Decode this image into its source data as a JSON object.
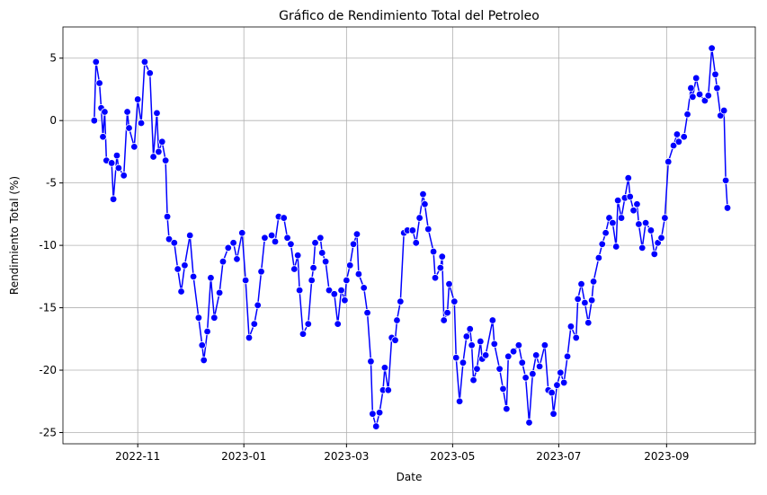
{
  "chart_data": {
    "type": "line",
    "title": "Gráfico de Rendimiento Total del Petroleo",
    "xlabel": "Date",
    "ylabel": "Rendimiento Total (%)",
    "grid": true,
    "xlim": [
      "2022-09-19",
      "2023-10-22"
    ],
    "xticks": [
      {
        "value": "2022-11-01",
        "label": "2022-11"
      },
      {
        "value": "2023-01-01",
        "label": "2023-01"
      },
      {
        "value": "2023-03-01",
        "label": "2023-03"
      },
      {
        "value": "2023-05-01",
        "label": "2023-05"
      },
      {
        "value": "2023-07-01",
        "label": "2023-07"
      },
      {
        "value": "2023-09-01",
        "label": "2023-09"
      }
    ],
    "ylim": [
      -25.9,
      7.5
    ],
    "yticks": [
      -25,
      -20,
      -15,
      -10,
      -5,
      0,
      5
    ],
    "x": [
      "2022-10-07",
      "2022-10-08",
      "2022-10-10",
      "2022-10-11",
      "2022-10-12",
      "2022-10-13",
      "2022-10-14",
      "2022-10-17",
      "2022-10-18",
      "2022-10-20",
      "2022-10-21",
      "2022-10-24",
      "2022-10-26",
      "2022-10-27",
      "2022-10-30",
      "2022-11-01",
      "2022-11-03",
      "2022-11-05",
      "2022-11-08",
      "2022-11-10",
      "2022-11-12",
      "2022-11-13",
      "2022-11-15",
      "2022-11-17",
      "2022-11-18",
      "2022-11-19",
      "2022-11-22",
      "2022-11-24",
      "2022-11-26",
      "2022-11-28",
      "2022-12-01",
      "2022-12-03",
      "2022-12-06",
      "2022-12-08",
      "2022-12-09",
      "2022-12-11",
      "2022-12-13",
      "2022-12-15",
      "2022-12-18",
      "2022-12-20",
      "2022-12-23",
      "2022-12-26",
      "2022-12-28",
      "2022-12-31",
      "2023-01-02",
      "2023-01-04",
      "2023-01-07",
      "2023-01-09",
      "2023-01-11",
      "2023-01-13",
      "2023-01-17",
      "2023-01-19",
      "2023-01-21",
      "2023-01-24",
      "2023-01-26",
      "2023-01-28",
      "2023-01-30",
      "2023-02-01",
      "2023-02-02",
      "2023-02-04",
      "2023-02-07",
      "2023-02-09",
      "2023-02-10",
      "2023-02-11",
      "2023-02-14",
      "2023-02-15",
      "2023-02-17",
      "2023-02-19",
      "2023-02-22",
      "2023-02-24",
      "2023-02-26",
      "2023-02-28",
      "2023-03-01",
      "2023-03-03",
      "2023-03-05",
      "2023-03-07",
      "2023-03-08",
      "2023-03-11",
      "2023-03-13",
      "2023-03-15",
      "2023-03-16",
      "2023-03-18",
      "2023-03-20",
      "2023-03-22",
      "2023-03-23",
      "2023-03-25",
      "2023-03-27",
      "2023-03-29",
      "2023-03-30",
      "2023-04-01",
      "2023-04-03",
      "2023-04-05",
      "2023-04-08",
      "2023-04-10",
      "2023-04-12",
      "2023-04-14",
      "2023-04-15",
      "2023-04-17",
      "2023-04-20",
      "2023-04-21",
      "2023-04-24",
      "2023-04-25",
      "2023-04-26",
      "2023-04-28",
      "2023-04-29",
      "2023-05-02",
      "2023-05-03",
      "2023-05-05",
      "2023-05-07",
      "2023-05-09",
      "2023-05-11",
      "2023-05-12",
      "2023-05-13",
      "2023-05-15",
      "2023-05-17",
      "2023-05-18",
      "2023-05-20",
      "2023-05-24",
      "2023-05-25",
      "2023-05-28",
      "2023-05-30",
      "2023-06-01",
      "2023-06-02",
      "2023-06-05",
      "2023-06-08",
      "2023-06-10",
      "2023-06-12",
      "2023-06-14",
      "2023-06-16",
      "2023-06-18",
      "2023-06-20",
      "2023-06-23",
      "2023-06-25",
      "2023-06-27",
      "2023-06-28",
      "2023-06-30",
      "2023-07-02",
      "2023-07-04",
      "2023-07-06",
      "2023-07-08",
      "2023-07-11",
      "2023-07-12",
      "2023-07-14",
      "2023-07-16",
      "2023-07-18",
      "2023-07-20",
      "2023-07-21",
      "2023-07-24",
      "2023-07-26",
      "2023-07-28",
      "2023-07-30",
      "2023-08-01",
      "2023-08-03",
      "2023-08-04",
      "2023-08-06",
      "2023-08-08",
      "2023-08-10",
      "2023-08-11",
      "2023-08-13",
      "2023-08-15",
      "2023-08-16",
      "2023-08-18",
      "2023-08-20",
      "2023-08-23",
      "2023-08-25",
      "2023-08-27",
      "2023-08-29",
      "2023-08-31",
      "2023-09-02",
      "2023-09-05",
      "2023-09-07",
      "2023-09-08",
      "2023-09-11",
      "2023-09-13",
      "2023-09-15",
      "2023-09-16",
      "2023-09-18",
      "2023-09-20",
      "2023-09-23",
      "2023-09-25",
      "2023-09-27",
      "2023-09-29",
      "2023-09-30",
      "2023-10-02",
      "2023-10-04",
      "2023-10-05",
      "2023-10-06"
    ],
    "series": [
      {
        "color": "#0000ff",
        "values": [
          0,
          4.7,
          3.0,
          1.0,
          -1.3,
          0.7,
          -3.2,
          -3.4,
          -6.3,
          -2.8,
          -3.8,
          -4.4,
          0.7,
          -0.6,
          -2.1,
          1.7,
          -0.2,
          4.7,
          3.8,
          -2.9,
          0.6,
          -2.5,
          -1.7,
          -3.2,
          -7.7,
          -9.5,
          -9.8,
          -11.9,
          -13.7,
          -11.6,
          -9.2,
          -12.5,
          -15.8,
          -18,
          -19.2,
          -16.9,
          -12.6,
          -15.8,
          -13.8,
          -11.3,
          -10.2,
          -9.8,
          -11.1,
          -9.0,
          -12.8,
          -17.4,
          -16.3,
          -14.8,
          -12.1,
          -9.4,
          -9.2,
          -9.7,
          -7.7,
          -7.8,
          -9.4,
          -9.9,
          -11.9,
          -10.8,
          -13.6,
          -17.1,
          -16.3,
          -12.8,
          -11.8,
          -9.8,
          -9.4,
          -10.6,
          -11.3,
          -13.6,
          -13.9,
          -16.3,
          -13.6,
          -14.4,
          -12.8,
          -11.6,
          -9.9,
          -9.1,
          -12.3,
          -13.4,
          -15.4,
          -19.3,
          -23.5,
          -24.5,
          -23.4,
          -21.6,
          -19.8,
          -21.6,
          -17.4,
          -17.6,
          -16,
          -14.5,
          -9.0,
          -8.8,
          -8.8,
          -9.8,
          -7.8,
          -5.9,
          -6.7,
          -8.7,
          -10.5,
          -12.6,
          -11.8,
          -10.9,
          -16.0,
          -15.4,
          -13.1,
          -14.5,
          -19,
          -22.5,
          -19.4,
          -17.3,
          -16.7,
          -18,
          -20.8,
          -19.9,
          -17.7,
          -19.1,
          -18.8,
          -16,
          -17.9,
          -19.9,
          -21.5,
          -23.1,
          -18.9,
          -18.5,
          -18.0,
          -19.4,
          -20.6,
          -24.2,
          -20.3,
          -18.8,
          -19.7,
          -18.0,
          -21.6,
          -21.8,
          -23.5,
          -21.2,
          -20.2,
          -21,
          -18.9,
          -16.5,
          -17.4,
          -14.3,
          -13.1,
          -14.6,
          -16.2,
          -14.4,
          -12.9,
          -11,
          -9.9,
          -9,
          -7.8,
          -8.2,
          -10.1,
          -6.4,
          -7.8,
          -6.2,
          -4.6,
          -6.1,
          -7.2,
          -6.7,
          -8.3,
          -10.2,
          -8.2,
          -8.8,
          -10.7,
          -9.8,
          -9.4,
          -7.8,
          -3.3,
          -2.0,
          -1.1,
          -1.7,
          -1.3,
          0.5,
          2.6,
          1.9,
          3.4,
          2.1,
          1.6,
          2.0,
          5.8,
          3.7,
          2.6,
          0.4,
          0.8,
          -4.8,
          -7.0
        ]
      }
    ]
  }
}
